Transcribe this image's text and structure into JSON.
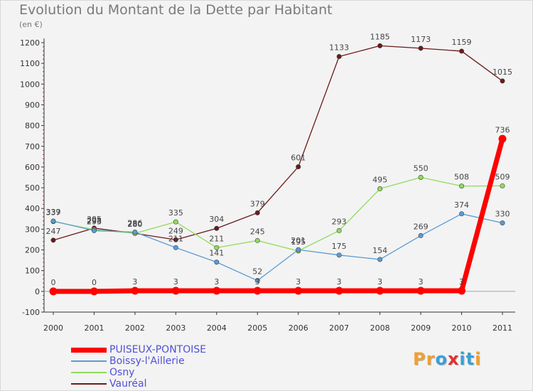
{
  "chart_data": {
    "type": "line",
    "title": "Evolution du Montant de la Dette par Habitant",
    "subtitle": "(en €)",
    "x": [
      "2000",
      "2001",
      "2002",
      "2003",
      "2004",
      "2005",
      "2006",
      "2007",
      "2008",
      "2009",
      "2010",
      "2011"
    ],
    "ylim": [
      -100,
      1200
    ],
    "yticks": [
      -100,
      0,
      100,
      200,
      300,
      400,
      500,
      600,
      700,
      800,
      900,
      1000,
      1100,
      1200
    ],
    "grid": false,
    "legend": "bottom-left",
    "series": [
      {
        "name": "Vauréal",
        "color": "#6b1a1a",
        "values": [
          247,
          305,
          280,
          249,
          304,
          379,
          601,
          1133,
          1185,
          1173,
          1159,
          1015
        ]
      },
      {
        "name": "Osny",
        "color": "#8fdc5a",
        "values": [
          337,
          298,
          280,
          335,
          211,
          245,
          195,
          293,
          495,
          550,
          508,
          509
        ]
      },
      {
        "name": "Boissy-l'Aillerie",
        "color": "#5b9bd5",
        "values": [
          339,
          293,
          286,
          211,
          141,
          52,
          201,
          175,
          154,
          269,
          374,
          330
        ]
      },
      {
        "name": "PUISEUX-PONTOISE",
        "color": "#ff0000",
        "values": [
          0,
          0,
          3,
          3,
          3,
          3,
          3,
          3,
          3,
          3,
          3,
          736
        ]
      }
    ],
    "legend_order": [
      "PUISEUX-PONTOISE",
      "Boissy-l'Aillerie",
      "Osny",
      "Vauréal"
    ]
  },
  "logo": {
    "text": "Proxiti",
    "letters": [
      "P",
      "r",
      "o",
      "x",
      "i",
      "t",
      "i"
    ],
    "colors": [
      "#f0a030",
      "#f0a030",
      "#3aa0d8",
      "#e03030",
      "#3aa0d8",
      "#3aa0d8",
      "#f0a030"
    ]
  }
}
